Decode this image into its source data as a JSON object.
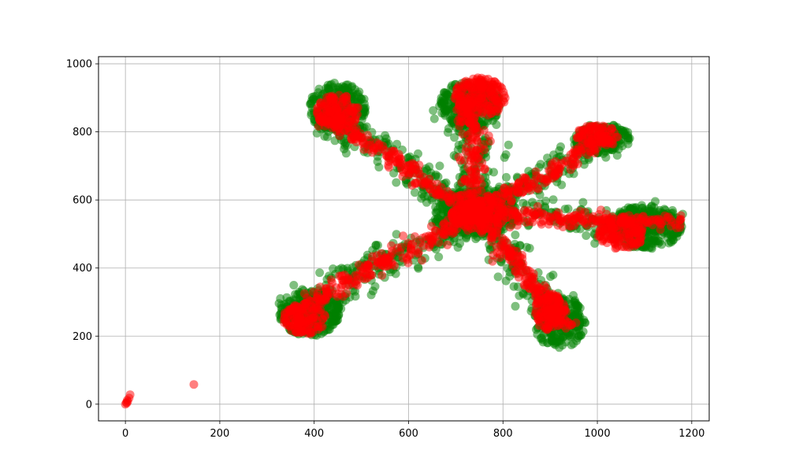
{
  "chart_data": {
    "type": "scatter",
    "title": "",
    "xlabel": "",
    "ylabel": "",
    "xlim": [
      -57,
      1237
    ],
    "ylim": [
      -49,
      1021
    ],
    "x_ticks": [
      0,
      200,
      400,
      600,
      800,
      1000,
      1200
    ],
    "y_ticks": [
      0,
      200,
      400,
      600,
      800,
      1000
    ],
    "x_tick_labels": [
      "0",
      "200",
      "400",
      "600",
      "800",
      "1000",
      "1200"
    ],
    "y_tick_labels": [
      "0",
      "200",
      "400",
      "600",
      "800",
      "1000"
    ],
    "grid": true,
    "center": [
      740,
      560
    ],
    "series": [
      {
        "color": "#008000",
        "alpha": 0.5,
        "arms": [
          {
            "from": [
              740,
              560
            ],
            "to": [
              420,
              850
            ],
            "width": 50
          },
          {
            "from": [
              740,
              560
            ],
            "to": [
              730,
              890
            ],
            "width": 55
          },
          {
            "from": [
              740,
              560
            ],
            "to": [
              1030,
              780
            ],
            "width": 45
          },
          {
            "from": [
              740,
              560
            ],
            "to": [
              1180,
              530
            ],
            "width": 50
          },
          {
            "from": [
              740,
              560
            ],
            "to": [
              940,
              220
            ],
            "width": 50
          },
          {
            "from": [
              740,
              560
            ],
            "to": [
              340,
              260
            ],
            "width": 60
          }
        ],
        "blobs": [
          {
            "center": [
              450,
              870
            ],
            "radius": [
              60,
              75
            ]
          },
          {
            "center": [
              730,
              880
            ],
            "radius": [
              65,
              70
            ]
          },
          {
            "center": [
              1010,
              780
            ],
            "radius": [
              60,
              45
            ]
          },
          {
            "center": [
              1100,
              520
            ],
            "radius": [
              80,
              65
            ]
          },
          {
            "center": [
              920,
              240
            ],
            "radius": [
              55,
              75
            ]
          },
          {
            "center": [
              390,
              270
            ],
            "radius": [
              65,
              70
            ]
          },
          {
            "center": [
              740,
              560
            ],
            "radius": [
              90,
              75
            ]
          }
        ]
      },
      {
        "color": "#ff0000",
        "alpha": 0.5,
        "arms": [
          {
            "from": [
              740,
              560
            ],
            "to": [
              420,
              850
            ],
            "width": 25
          },
          {
            "from": [
              740,
              560
            ],
            "to": [
              730,
              890
            ],
            "width": 30
          },
          {
            "from": [
              740,
              560
            ],
            "to": [
              1030,
              780
            ],
            "width": 25
          },
          {
            "from": [
              740,
              560
            ],
            "to": [
              1180,
              530
            ],
            "width": 25
          },
          {
            "from": [
              740,
              560
            ],
            "to": [
              940,
              220
            ],
            "width": 25
          },
          {
            "from": [
              740,
              560
            ],
            "to": [
              340,
              260
            ],
            "width": 30
          }
        ],
        "blobs": [
          {
            "center": [
              450,
              860
            ],
            "radius": [
              45,
              50
            ]
          },
          {
            "center": [
              750,
              900
            ],
            "radius": [
              55,
              60
            ]
          },
          {
            "center": [
              1000,
              790
            ],
            "radius": [
              45,
              30
            ]
          },
          {
            "center": [
              1050,
              500
            ],
            "radius": [
              50,
              45
            ]
          },
          {
            "center": [
              900,
              270
            ],
            "radius": [
              35,
              55
            ]
          },
          {
            "center": [
              380,
              250
            ],
            "radius": [
              45,
              45
            ]
          },
          {
            "center": [
              750,
              560
            ],
            "radius": [
              60,
              50
            ]
          }
        ],
        "points": [
          [
            0,
            0
          ],
          [
            2,
            5
          ],
          [
            3,
            3
          ],
          [
            5,
            8
          ],
          [
            4,
            12
          ],
          [
            8,
            18
          ],
          [
            10,
            28
          ],
          [
            145,
            58
          ]
        ]
      }
    ]
  }
}
